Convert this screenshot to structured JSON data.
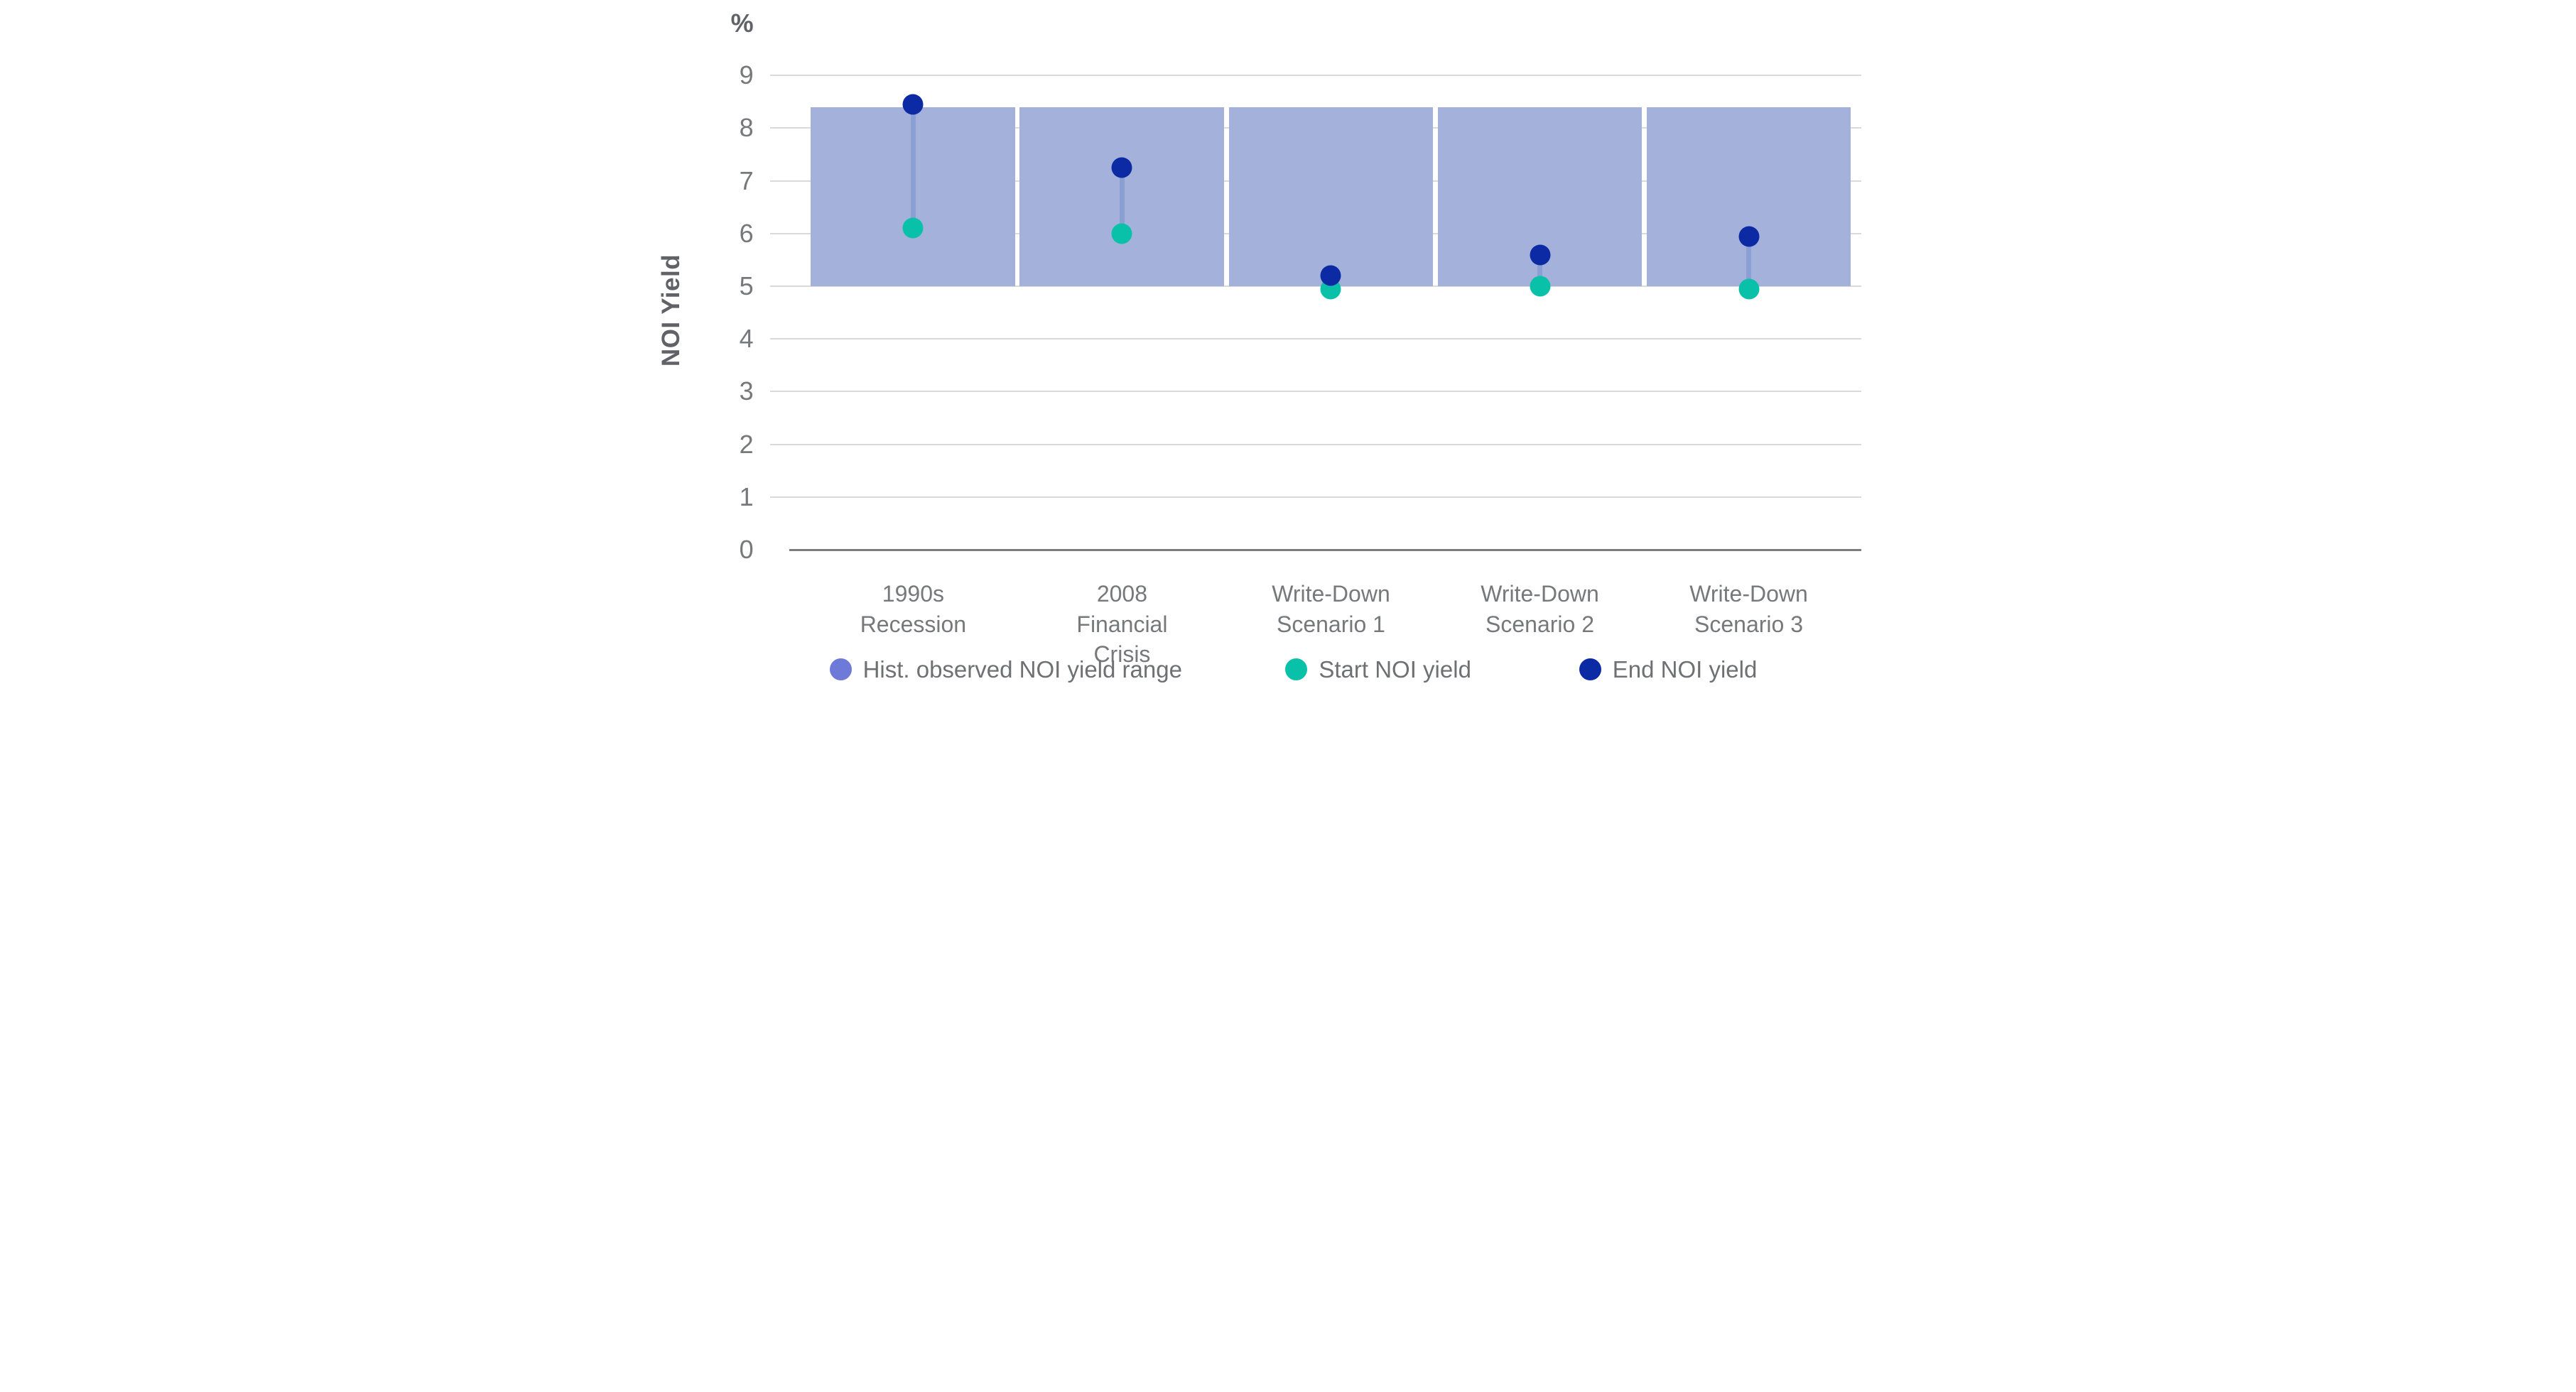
{
  "chart_data": {
    "type": "bar",
    "subtype": "floating-range-bars-with-dumbbell-markers",
    "title": "",
    "unit_label": "%",
    "ylabel": "NOI Yield",
    "ylim": [
      0,
      9
    ],
    "yticks": [
      9,
      8,
      7,
      6,
      5,
      4,
      3,
      2,
      1,
      0
    ],
    "grid": "horizontal",
    "legend_position": "bottom",
    "categories": [
      [
        "1990s",
        "Recession"
      ],
      [
        "2008",
        "Financial",
        "Crisis"
      ],
      [
        "Write-Down",
        "Scenario 1"
      ],
      [
        "Write-Down",
        "Scenario 2"
      ],
      [
        "Write-Down",
        "Scenario 3"
      ]
    ],
    "range_series": {
      "name": "Hist. observed NOI yield range",
      "low": [
        5.0,
        5.0,
        5.0,
        5.0,
        5.0
      ],
      "high": [
        8.4,
        8.4,
        8.4,
        8.4,
        8.4
      ]
    },
    "series": [
      {
        "name": "Start NOI yield",
        "values": [
          6.1,
          6.0,
          4.95,
          5.0,
          4.95
        ]
      },
      {
        "name": "End NOI yield",
        "values": [
          8.45,
          7.25,
          5.2,
          5.6,
          5.95
        ]
      }
    ]
  },
  "legend": {
    "items": [
      {
        "label": "Hist. observed NOI yield range",
        "color_key": "range_marker"
      },
      {
        "label": "Start NOI yield",
        "color_key": "start"
      },
      {
        "label": "End NOI yield",
        "color_key": "end"
      }
    ]
  },
  "colors": {
    "bar_fill": "#a4b1da",
    "range_marker": "#6d7ad7",
    "start": "#09c1a8",
    "end": "#0d2aa5",
    "connector": "#8ba0d2",
    "gridline": "#dadada",
    "axis_line": "#7d7d80",
    "text": "#77787c"
  }
}
